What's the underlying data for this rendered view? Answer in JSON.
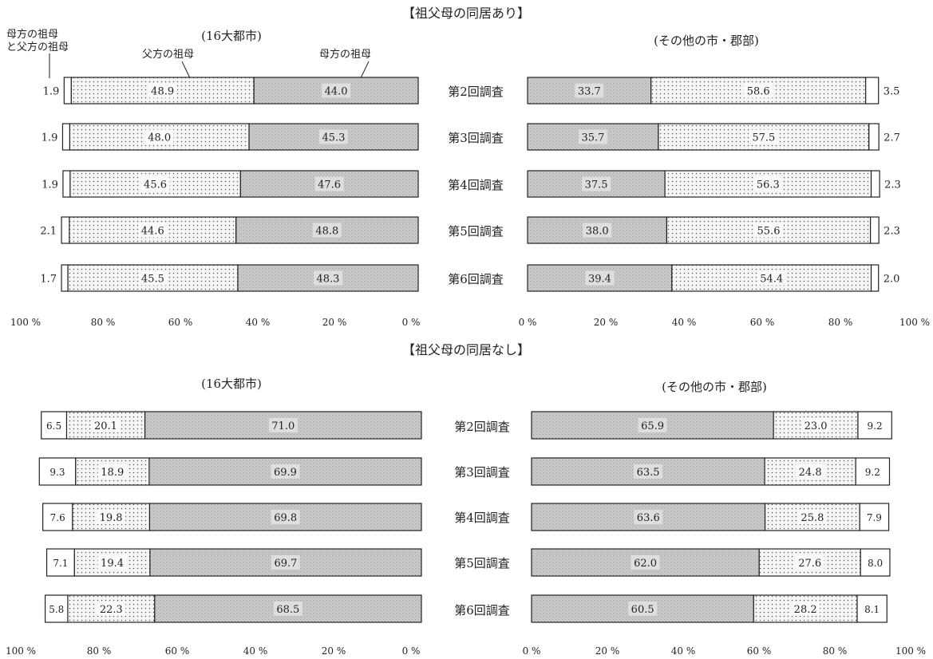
{
  "chart_data": {
    "type": "bar",
    "stacked": true,
    "orientation": "horizontal",
    "rows": [
      "第2回調査",
      "第3回調査",
      "第4回調査",
      "第5回調査",
      "第6回調査"
    ],
    "panels": [
      {
        "section_title": "【祖父母の同居あり】",
        "left": {
          "subtitle": "(16大都市)",
          "direction": "right-to-left",
          "ticks": [
            "100 %",
            "80 %",
            "60 %",
            "40 %",
            "20 %",
            "0 %"
          ],
          "series": [
            {
              "name": "母方の祖母",
              "values": [
                44.0,
                45.3,
                47.6,
                48.8,
                48.3
              ]
            },
            {
              "name": "父方の祖母",
              "values": [
                48.9,
                48.0,
                45.6,
                44.6,
                45.5
              ]
            },
            {
              "name": "母方の祖母と父方の祖母",
              "values": [
                1.9,
                1.9,
                1.9,
                2.1,
                1.7
              ]
            }
          ]
        },
        "right": {
          "subtitle": "(その他の市・郡部)",
          "direction": "left-to-right",
          "ticks": [
            "0 %",
            "20 %",
            "40 %",
            "60 %",
            "80 %",
            "100 %"
          ],
          "series": [
            {
              "name": "母方の祖母",
              "values": [
                33.7,
                35.7,
                37.5,
                38.0,
                39.4
              ]
            },
            {
              "name": "父方の祖母",
              "values": [
                58.6,
                57.5,
                56.3,
                55.6,
                54.4
              ]
            },
            {
              "name": "母方の祖母と父方の祖母",
              "values": [
                3.5,
                2.7,
                2.3,
                2.3,
                2.0
              ]
            }
          ]
        }
      },
      {
        "section_title": "【祖父母の同居なし】",
        "left": {
          "subtitle": "(16大都市)",
          "direction": "right-to-left",
          "ticks": [
            "100 %",
            "80 %",
            "60 %",
            "40 %",
            "20 %",
            "0 %"
          ],
          "series": [
            {
              "name": "母方の祖母",
              "values": [
                71.0,
                69.9,
                69.8,
                69.7,
                68.5
              ]
            },
            {
              "name": "父方の祖母",
              "values": [
                20.1,
                18.9,
                19.8,
                19.4,
                22.3
              ]
            },
            {
              "name": "母方の祖母と父方の祖母",
              "values": [
                6.5,
                9.3,
                7.6,
                7.1,
                5.8
              ]
            }
          ]
        },
        "right": {
          "subtitle": "(その他の市・郡部)",
          "direction": "left-to-right",
          "ticks": [
            "0 %",
            "20 %",
            "40 %",
            "60 %",
            "80 %",
            "100 %"
          ],
          "series": [
            {
              "name": "母方の祖母",
              "values": [
                65.9,
                63.5,
                63.6,
                62.0,
                60.5
              ]
            },
            {
              "name": "父方の祖母",
              "values": [
                23.0,
                24.8,
                25.8,
                27.6,
                28.2
              ]
            },
            {
              "name": "母方の祖母と父方の祖母",
              "values": [
                9.2,
                9.2,
                7.9,
                8.0,
                8.1
              ]
            }
          ]
        }
      }
    ],
    "legend_labels": {
      "both": "母方の祖母と父方の祖母",
      "both_line1": "母方の祖母",
      "both_line2": "と父方の祖母",
      "paternal": "父方の祖母",
      "maternal": "母方の祖母"
    },
    "fills": {
      "maternal": "#c8c8c8",
      "paternal": "#f4f4f4",
      "both": "#ffffff",
      "border": "#222222"
    }
  }
}
